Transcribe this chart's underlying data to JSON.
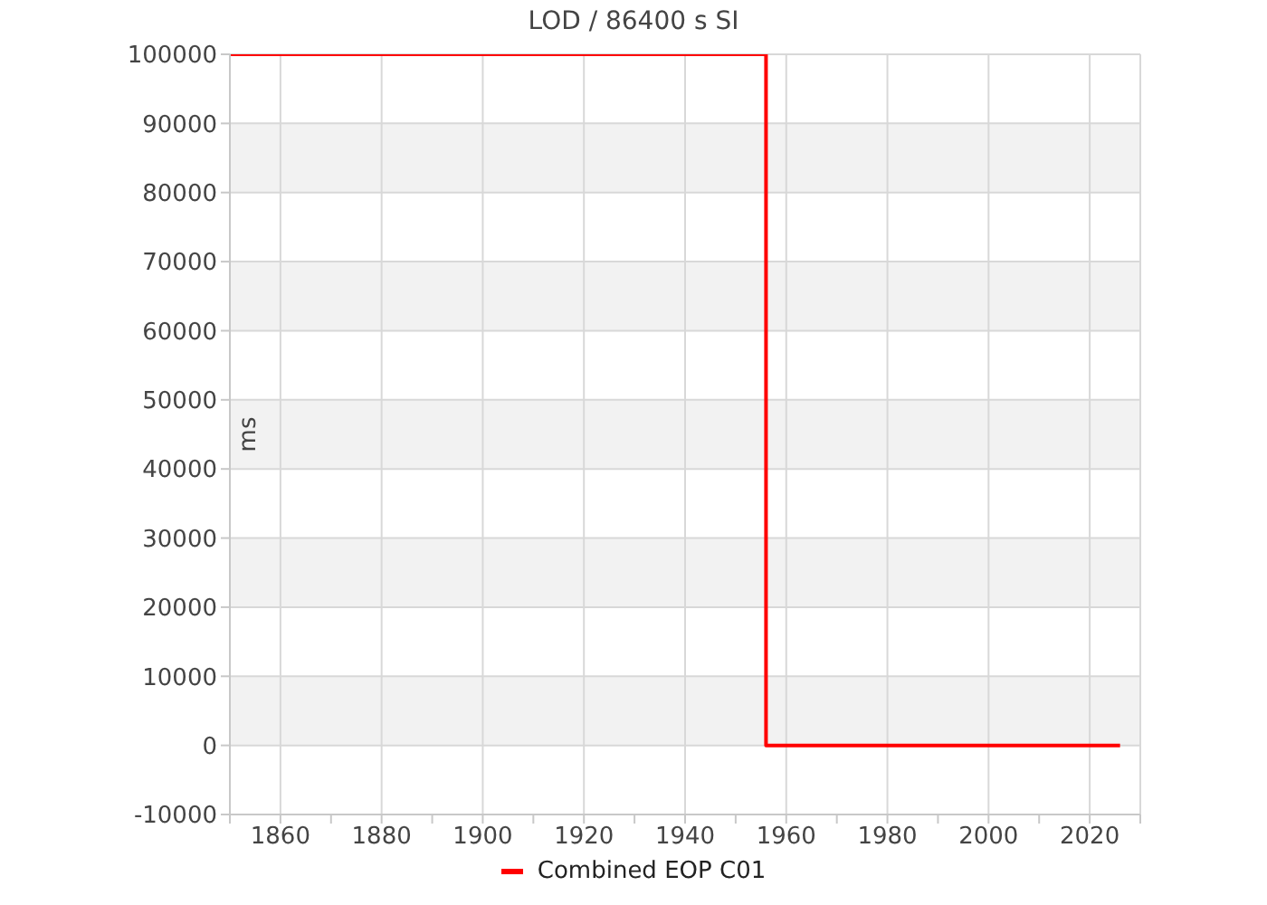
{
  "chart_data": {
    "type": "line",
    "title": "LOD / 86400 s SI",
    "ylabel": "ms",
    "x": [
      1850,
      1956,
      1956,
      2026
    ],
    "series": [
      {
        "name": "Combined EOP C01",
        "color": "#ff0000",
        "values": [
          100000,
          100000,
          0,
          0
        ]
      }
    ],
    "xlim": [
      1850,
      2030
    ],
    "xticks": [
      {
        "value": 1850,
        "label": null
      },
      1860,
      {
        "value": 1870,
        "label": null
      },
      1880,
      {
        "value": 1890,
        "label": null
      },
      1900,
      {
        "value": 1910,
        "label": null
      },
      1920,
      {
        "value": 1930,
        "label": null
      },
      1940,
      {
        "value": 1950,
        "label": null
      },
      1960,
      {
        "value": 1970,
        "label": null
      },
      1980,
      {
        "value": 1990,
        "label": null
      },
      2000,
      {
        "value": 2010,
        "label": null
      },
      2020,
      {
        "value": 2030,
        "label": null
      }
    ],
    "ylim": [
      -10000,
      100000
    ],
    "yticks": [
      -10000,
      0,
      10000,
      20000,
      30000,
      40000,
      50000,
      60000,
      70000,
      80000,
      90000,
      100000
    ],
    "grid": true,
    "legend": "bottom",
    "marker": "none",
    "line_style": "solid"
  }
}
